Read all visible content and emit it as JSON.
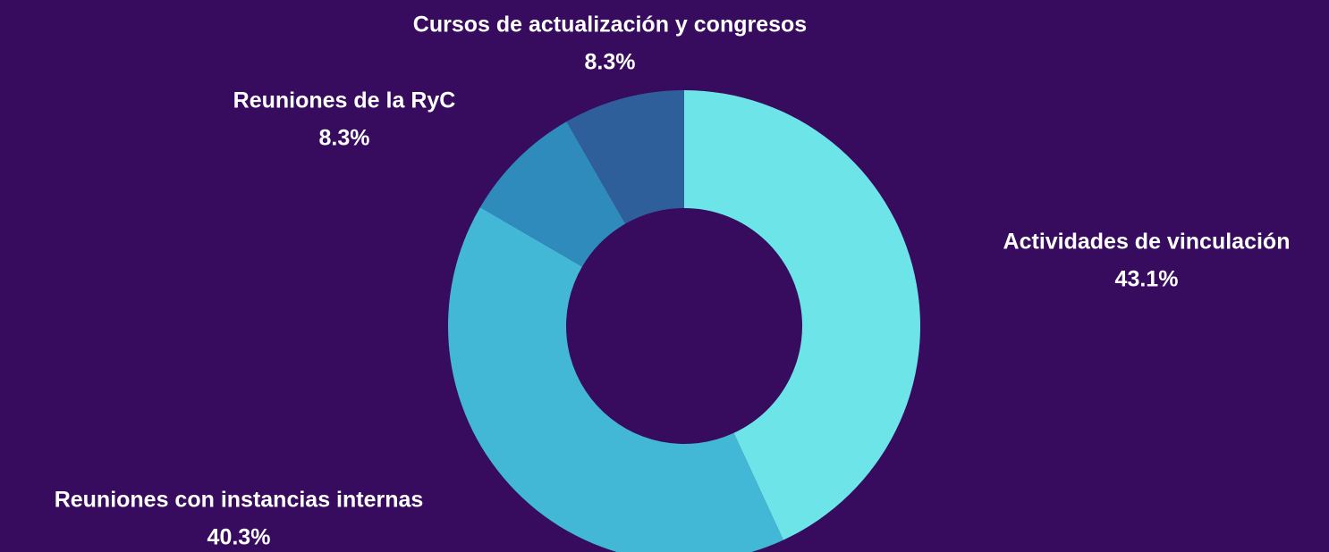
{
  "chart_data": {
    "type": "donut",
    "categories": [
      "Actividades de vinculación",
      "Reuniones con instancias internas",
      "Reuniones de la RyC",
      "Cursos de actualización y congresos"
    ],
    "values": [
      43.1,
      40.3,
      8.3,
      8.3
    ],
    "value_labels": [
      "43.1%",
      "40.3%",
      "8.3%",
      "8.3%"
    ],
    "colors": [
      "#6ce4e8",
      "#42b8d6",
      "#2e8bbb",
      "#2f5f9a"
    ]
  }
}
